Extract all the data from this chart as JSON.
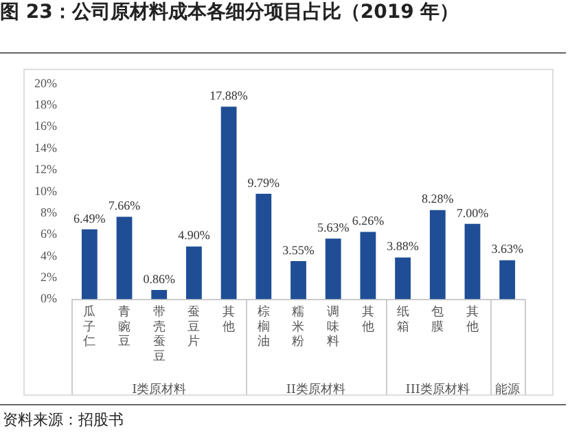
{
  "chart_data": {
    "type": "bar",
    "title": "图 23：公司原材料成本各细分项目占比（2019 年）",
    "categories": [
      "瓜子仁",
      "青豌豆",
      "带壳蚕豆",
      "蚕豆片",
      "其他",
      "棕榈油",
      "糯米粉",
      "调味料",
      "其他",
      "纸箱",
      "包膜",
      "其他",
      null
    ],
    "values": [
      6.49,
      7.66,
      0.86,
      4.9,
      17.88,
      9.79,
      3.55,
      5.63,
      6.26,
      3.88,
      8.28,
      7.0,
      3.63
    ],
    "value_labels": [
      "6.49%",
      "7.66%",
      "0.86%",
      "4.90%",
      "17.88%",
      "9.79%",
      "3.55%",
      "5.63%",
      "6.26%",
      "3.88%",
      "8.28%",
      "7.00%",
      "3.63%"
    ],
    "color": "#1f4e96",
    "ylim": [
      0,
      20
    ],
    "yticks": [
      {
        "value": 0,
        "label": "0%"
      },
      {
        "value": 2,
        "label": "2%"
      },
      {
        "value": 4,
        "label": "4%"
      },
      {
        "value": 6,
        "label": "6%"
      },
      {
        "value": 8,
        "label": "8%"
      },
      {
        "value": 10,
        "label": "10%"
      },
      {
        "value": 12,
        "label": "12%"
      },
      {
        "value": 14,
        "label": "14%"
      },
      {
        "value": 16,
        "label": "16%"
      },
      {
        "value": 18,
        "label": "18%"
      },
      {
        "value": 20,
        "label": "20%"
      }
    ],
    "grid": false,
    "legend": false,
    "annotations": [
      "I类原材料",
      "II类原材料",
      "III类原材料",
      "能源",
      "资料来源：招股书"
    ]
  }
}
